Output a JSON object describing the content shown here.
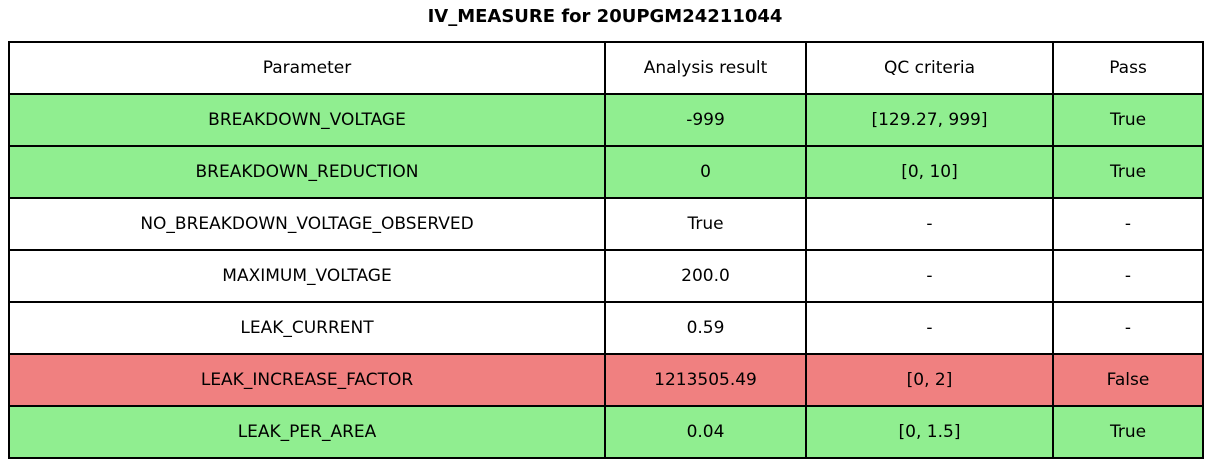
{
  "chart_data": {
    "type": "table",
    "title": "IV_MEASURE for 20UPGM24211044",
    "columns": [
      "Parameter",
      "Analysis result",
      "QC criteria",
      "Pass"
    ],
    "cell_keys": [
      "parameter",
      "analysis_result",
      "qc_criteria",
      "pass"
    ],
    "rows": [
      {
        "parameter": "BREAKDOWN_VOLTAGE",
        "analysis_result": "-999",
        "qc_criteria": "[129.27, 999]",
        "pass": "True",
        "status": "pass"
      },
      {
        "parameter": "BREAKDOWN_REDUCTION",
        "analysis_result": "0",
        "qc_criteria": "[0, 10]",
        "pass": "True",
        "status": "pass"
      },
      {
        "parameter": "NO_BREAKDOWN_VOLTAGE_OBSERVED",
        "analysis_result": "True",
        "qc_criteria": "-",
        "pass": "-",
        "status": "neutral"
      },
      {
        "parameter": "MAXIMUM_VOLTAGE",
        "analysis_result": "200.0",
        "qc_criteria": "-",
        "pass": "-",
        "status": "neutral"
      },
      {
        "parameter": "LEAK_CURRENT",
        "analysis_result": "0.59",
        "qc_criteria": "-",
        "pass": "-",
        "status": "neutral"
      },
      {
        "parameter": "LEAK_INCREASE_FACTOR",
        "analysis_result": "1213505.49",
        "qc_criteria": "[0, 2]",
        "pass": "False",
        "status": "fail"
      },
      {
        "parameter": "LEAK_PER_AREA",
        "analysis_result": "0.04",
        "qc_criteria": "[0, 1.5]",
        "pass": "True",
        "status": "pass"
      }
    ],
    "colors": {
      "pass_row": "#90EE90",
      "fail_row": "#F08080",
      "neutral_row": "#FFFFFF",
      "header_background": "#FFFFFF",
      "border": "#000000",
      "text": "#000000"
    },
    "layout_hints": {
      "legend": "none",
      "grid": "table-borders"
    }
  }
}
